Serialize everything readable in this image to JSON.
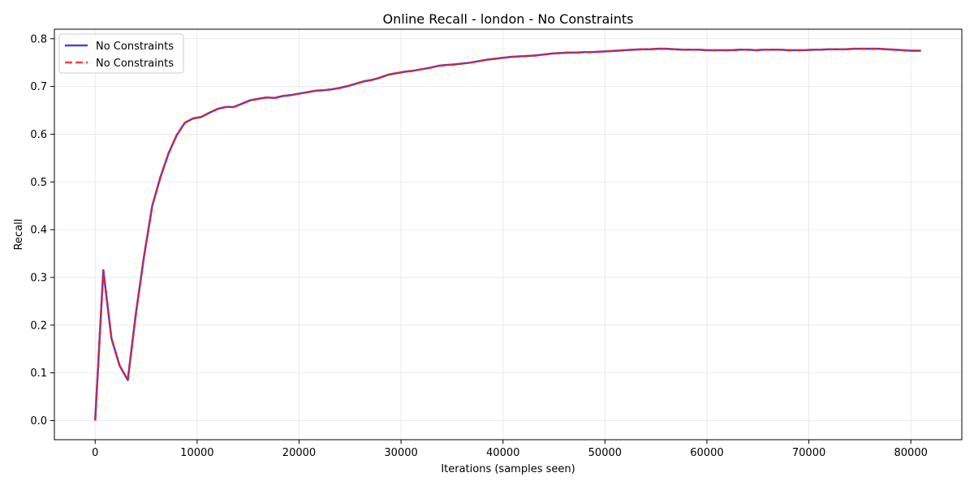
{
  "chart_data": {
    "type": "line",
    "title": "Online Recall - london - No Constraints",
    "xlabel": "Iterations (samples seen)",
    "ylabel": "Recall",
    "xlim": [
      -4000,
      85000
    ],
    "ylim": [
      -0.04,
      0.82
    ],
    "xticks": [
      0,
      10000,
      20000,
      30000,
      40000,
      50000,
      60000,
      70000,
      80000
    ],
    "yticks": [
      0.0,
      0.1,
      0.2,
      0.3,
      0.4,
      0.5,
      0.6,
      0.7,
      0.8
    ],
    "grid": true,
    "legend": "top-left",
    "x": [
      0,
      800,
      1600,
      2400,
      3200,
      4000,
      4800,
      5600,
      6400,
      7200,
      8000,
      8800,
      9600,
      10400,
      11200,
      12000,
      12800,
      13600,
      14400,
      15200,
      16000,
      16800,
      17600,
      18400,
      19200,
      20000,
      20800,
      21600,
      22400,
      23200,
      24000,
      24800,
      25600,
      26400,
      27200,
      28000,
      28800,
      29600,
      30400,
      31200,
      32000,
      32800,
      33600,
      34400,
      35200,
      36000,
      36800,
      37600,
      38400,
      39200,
      40000,
      40800,
      41600,
      42400,
      43200,
      44000,
      44800,
      45600,
      46400,
      47200,
      48000,
      48800,
      49600,
      50400,
      51200,
      52000,
      52800,
      53600,
      54400,
      55200,
      56000,
      56800,
      57600,
      58400,
      59200,
      60000,
      60800,
      61600,
      62400,
      63200,
      64000,
      64800,
      65600,
      66400,
      67200,
      68000,
      68800,
      69600,
      70400,
      71200,
      72000,
      72800,
      73600,
      74400,
      75200,
      76000,
      76800,
      77600,
      78400,
      79200,
      80000,
      81000
    ],
    "series": [
      {
        "name": "No Constraints",
        "color": "#2222dd",
        "style": "solid",
        "values": [
          0.0,
          0.315,
          0.172,
          0.115,
          0.085,
          0.225,
          0.345,
          0.45,
          0.51,
          0.56,
          0.598,
          0.624,
          0.633,
          0.636,
          0.645,
          0.653,
          0.657,
          0.657,
          0.664,
          0.671,
          0.674,
          0.677,
          0.676,
          0.68,
          0.682,
          0.685,
          0.688,
          0.691,
          0.692,
          0.694,
          0.697,
          0.701,
          0.706,
          0.711,
          0.714,
          0.719,
          0.725,
          0.728,
          0.731,
          0.733,
          0.736,
          0.739,
          0.743,
          0.745,
          0.746,
          0.748,
          0.75,
          0.753,
          0.756,
          0.758,
          0.76,
          0.762,
          0.763,
          0.764,
          0.765,
          0.767,
          0.769,
          0.77,
          0.771,
          0.771,
          0.772,
          0.772,
          0.773,
          0.774,
          0.775,
          0.776,
          0.777,
          0.778,
          0.778,
          0.779,
          0.779,
          0.778,
          0.777,
          0.777,
          0.777,
          0.776,
          0.776,
          0.776,
          0.776,
          0.777,
          0.777,
          0.776,
          0.777,
          0.777,
          0.777,
          0.776,
          0.776,
          0.776,
          0.777,
          0.777,
          0.778,
          0.778,
          0.778,
          0.779,
          0.779,
          0.779,
          0.779,
          0.778,
          0.777,
          0.776,
          0.775,
          0.775
        ]
      },
      {
        "name": "No Constraints",
        "color": "#ee2222",
        "style": "dashed",
        "values": [
          0.0,
          0.315,
          0.172,
          0.115,
          0.085,
          0.225,
          0.345,
          0.45,
          0.51,
          0.56,
          0.598,
          0.624,
          0.633,
          0.636,
          0.645,
          0.653,
          0.657,
          0.657,
          0.664,
          0.671,
          0.674,
          0.677,
          0.676,
          0.68,
          0.682,
          0.685,
          0.688,
          0.691,
          0.692,
          0.694,
          0.697,
          0.701,
          0.706,
          0.711,
          0.714,
          0.719,
          0.725,
          0.728,
          0.731,
          0.733,
          0.736,
          0.739,
          0.743,
          0.745,
          0.746,
          0.748,
          0.75,
          0.753,
          0.756,
          0.758,
          0.76,
          0.762,
          0.763,
          0.764,
          0.765,
          0.767,
          0.769,
          0.77,
          0.771,
          0.771,
          0.772,
          0.772,
          0.773,
          0.774,
          0.775,
          0.776,
          0.777,
          0.778,
          0.778,
          0.779,
          0.779,
          0.778,
          0.777,
          0.777,
          0.777,
          0.776,
          0.776,
          0.776,
          0.776,
          0.777,
          0.777,
          0.776,
          0.777,
          0.777,
          0.777,
          0.776,
          0.776,
          0.776,
          0.777,
          0.777,
          0.778,
          0.778,
          0.778,
          0.779,
          0.779,
          0.779,
          0.779,
          0.778,
          0.777,
          0.776,
          0.775,
          0.775
        ]
      }
    ]
  }
}
